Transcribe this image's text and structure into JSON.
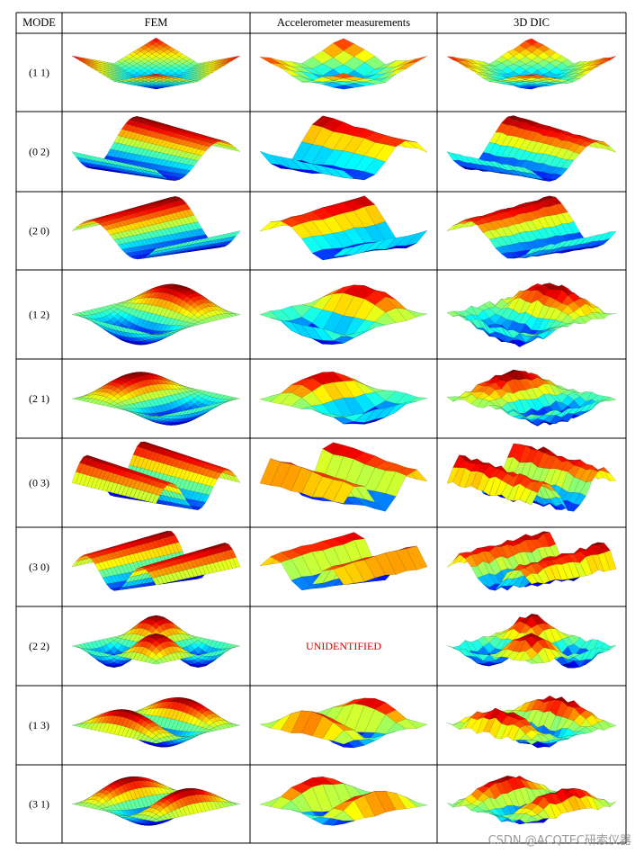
{
  "header": {
    "mode_label": "MODE",
    "columns": [
      "FEM",
      "Accelerometer measurements",
      "3D DIC"
    ]
  },
  "rows": [
    {
      "mode": "(1 1)",
      "m": 1,
      "n": 1,
      "unidentified": false
    },
    {
      "mode": "(0 2)",
      "m": 0,
      "n": 2,
      "unidentified": false
    },
    {
      "mode": "(2 0)",
      "m": 2,
      "n": 0,
      "unidentified": false
    },
    {
      "mode": "(1 2)",
      "m": 1,
      "n": 2,
      "unidentified": false
    },
    {
      "mode": "(2 1)",
      "m": 2,
      "n": 1,
      "unidentified": false
    },
    {
      "mode": "(0 3)",
      "m": 0,
      "n": 3,
      "unidentified": false
    },
    {
      "mode": "(3 0)",
      "m": 3,
      "n": 0,
      "unidentified": false
    },
    {
      "mode": "(2 2)",
      "m": 2,
      "n": 2,
      "unidentified": true
    },
    {
      "mode": "(1 3)",
      "m": 1,
      "n": 3,
      "unidentified": false
    },
    {
      "mode": "(3 1)",
      "m": 3,
      "n": 1,
      "unidentified": false
    }
  ],
  "unidentified_label": "UNIDENTIFIED",
  "watermark": "CSDN @ACQTEC研索仪器",
  "colors": {
    "unidentified": "#e00000",
    "watermark": "#9a9a9a",
    "grid": "#000000"
  }
}
